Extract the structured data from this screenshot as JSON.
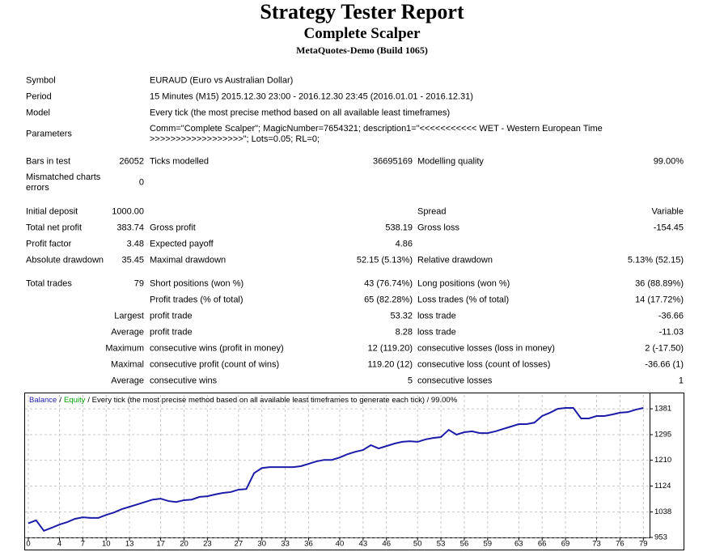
{
  "header": {
    "title": "Strategy Tester Report",
    "subtitle": "Complete Scalper",
    "server": "MetaQuotes-Demo (Build 1065)"
  },
  "report": {
    "rows": [
      [
        "Symbol",
        null,
        "EURAUD (Euro vs Australian Dollar)"
      ],
      [
        "Period",
        null,
        "15 Minutes (M15) 2015.12.30 23:00 - 2016.12.30 23:45 (2016.01.01 - 2016.12.31)"
      ],
      [
        "Model",
        null,
        "Every tick (the most precise method based on all available least timeframes)"
      ],
      [
        "Parameters",
        null,
        [
          "Comm=\"Complete Scalper\"; MagicNumber=7654321; description1=\"<<<<<<<<<<< WET - Western European Time",
          ">>>>>>>>>>>>>>>>>>\"; Lots=0.05; RL=0;"
        ]
      ],
      [
        "Bars in test",
        "26052",
        "Ticks modelled",
        "36695169",
        "Modelling quality",
        "99.00%"
      ],
      [
        [
          "Mismatched charts",
          "errors"
        ],
        "0"
      ],
      [
        "Initial deposit",
        "1000.00",
        null,
        null,
        "Spread",
        "Variable"
      ],
      [
        "Total net profit",
        "383.74",
        "Gross profit",
        "538.19",
        "Gross loss",
        "-154.45"
      ],
      [
        "Profit factor",
        "3.48",
        "Expected payoff",
        "4.86"
      ],
      [
        "Absolute drawdown",
        "35.45",
        "Maximal drawdown",
        "52.15 (5.13%)",
        "Relative drawdown",
        "5.13% (52.15)"
      ],
      [
        "Total trades",
        "79",
        "Short positions (won %)",
        "43 (76.74%)",
        "Long positions (won %)",
        "36 (88.89%)"
      ],
      [
        null,
        null,
        "Profit trades (% of total)",
        "65 (82.28%)",
        "Loss trades (% of total)",
        "14 (17.72%)"
      ],
      [
        null,
        "Largest",
        "profit trade",
        "53.32",
        "loss trade",
        "-36.66"
      ],
      [
        null,
        "Average",
        "profit trade",
        "8.28",
        "loss trade",
        "-11.03"
      ],
      [
        null,
        "Maximum",
        "consecutive wins (profit in money)",
        "12 (119.20)",
        "consecutive losses (loss in money)",
        "2 (-17.50)"
      ],
      [
        null,
        "Maximal",
        "consecutive profit (count of wins)",
        "119.20 (12)",
        "consecutive loss (count of losses)",
        "-36.66 (1)"
      ],
      [
        null,
        "Average",
        "consecutive wins",
        "5",
        "consecutive losses",
        "1"
      ]
    ]
  },
  "chart_data": {
    "type": "line",
    "series": [
      {
        "name": "Balance",
        "color": "#1c1ca8",
        "values": [
          1000,
          1010,
          975,
          985,
          996,
          1004,
          1015,
          1020,
          1018,
          1018,
          1028,
          1036,
          1047,
          1055,
          1063,
          1071,
          1079,
          1082,
          1074,
          1071,
          1077,
          1079,
          1088,
          1090,
          1096,
          1101,
          1104,
          1112,
          1114,
          1167,
          1184,
          1187,
          1187,
          1187,
          1187,
          1190,
          1198,
          1206,
          1211,
          1211,
          1219,
          1230,
          1238,
          1244,
          1260,
          1249,
          1257,
          1265,
          1271,
          1273,
          1271,
          1279,
          1284,
          1287,
          1311,
          1295,
          1303,
          1306,
          1300,
          1300,
          1306,
          1314,
          1322,
          1330,
          1330,
          1335,
          1357,
          1368,
          1381,
          1384,
          1384,
          1349,
          1349,
          1357,
          1357,
          1362,
          1368,
          1370,
          1378,
          1384
        ]
      }
    ],
    "legend_separator": "/",
    "legend_items": [
      {
        "text": "Equity",
        "color": "#00a000"
      }
    ],
    "legend_note": "/ Every tick (the most precise method based on all available least timeframes to generate each tick) / 99.00%",
    "x": [
      0,
      1,
      2,
      3,
      4,
      5,
      6,
      7,
      8,
      9,
      10,
      11,
      12,
      13,
      14,
      15,
      16,
      17,
      18,
      19,
      20,
      21,
      22,
      23,
      24,
      25,
      26,
      27,
      28,
      29,
      30,
      31,
      32,
      33,
      34,
      35,
      36,
      37,
      38,
      39,
      40,
      41,
      42,
      43,
      44,
      45,
      46,
      47,
      48,
      49,
      50,
      51,
      52,
      53,
      54,
      55,
      56,
      57,
      58,
      59,
      60,
      61,
      62,
      63,
      64,
      65,
      66,
      67,
      68,
      69,
      70,
      71,
      72,
      73,
      74,
      75,
      76,
      77,
      78,
      79
    ],
    "xlim": [
      0,
      79.8
    ],
    "xticks": [
      0,
      4,
      7,
      10,
      13,
      17,
      20,
      23,
      27,
      30,
      33,
      36,
      40,
      43,
      46,
      50,
      53,
      56,
      59,
      63,
      66,
      69,
      73,
      76,
      79
    ],
    "ylim": [
      953,
      1427
    ],
    "yticks": [
      953,
      1038,
      1124,
      1210,
      1295,
      1381
    ],
    "grid": true
  }
}
